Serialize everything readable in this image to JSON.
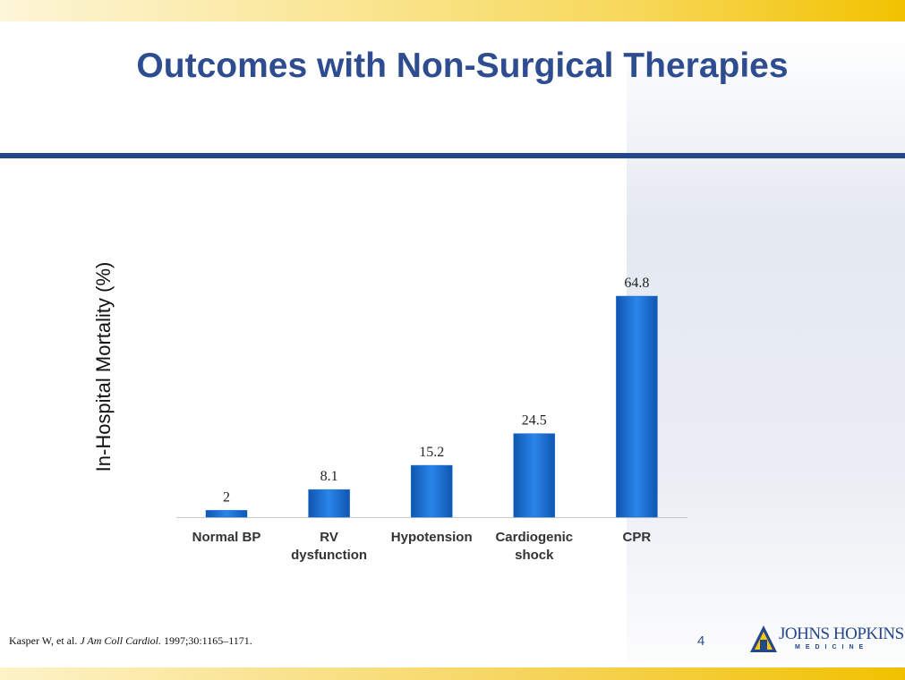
{
  "chart_data": {
    "type": "bar",
    "title": "Outcomes with Non-Surgical Therapies",
    "y_label": "In-Hospital Mortality (%)",
    "categories": [
      "Normal BP",
      "RV dysfunction",
      "Hypotension",
      "Cardiogenic shock",
      "CPR"
    ],
    "values": [
      2,
      8.1,
      15.2,
      24.5,
      64.8
    ],
    "color": "#1c6fd4"
  },
  "citation": {
    "authors": "Kasper W, et al.",
    "journal": "J Am Coll Cardiol.",
    "details": "1997;30:1165–1171."
  },
  "page_number": "4",
  "logo": {
    "name": "JOHNS HOPKINS",
    "sub": "MEDICINE"
  }
}
